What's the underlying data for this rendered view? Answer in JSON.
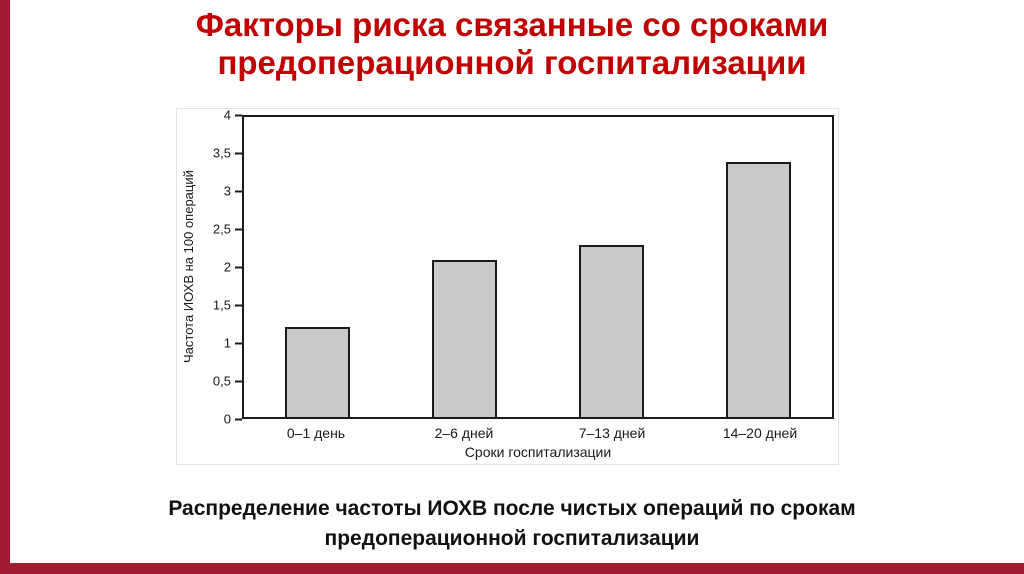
{
  "slide": {
    "title": "Факторы риска связанные со сроками предоперационной госпитализации",
    "caption": "Распределение частоты ИОХВ после чистых операций по срокам предоперационной госпитализации",
    "accent_color": "#9e1b32",
    "title_color": "#c00000"
  },
  "chart_data": {
    "type": "bar",
    "categories": [
      "0–1 день",
      "2–6 дней",
      "7–13 дней",
      "14–20 дней"
    ],
    "values": [
      1.2,
      2.1,
      2.3,
      3.4
    ],
    "title": "",
    "xlabel": "Сроки госпитализации",
    "ylabel": "Частота ИОХВ на 100 операций",
    "ylim": [
      0,
      4
    ],
    "ytick_step": 0.5,
    "ytick_labels": [
      "0",
      "0,5",
      "1",
      "1,5",
      "2",
      "2,5",
      "3",
      "3,5",
      "4"
    ],
    "bar_fill_color": "#cacaca",
    "bar_border_color": "#1a1a1a",
    "grid": false,
    "legend": "none"
  }
}
